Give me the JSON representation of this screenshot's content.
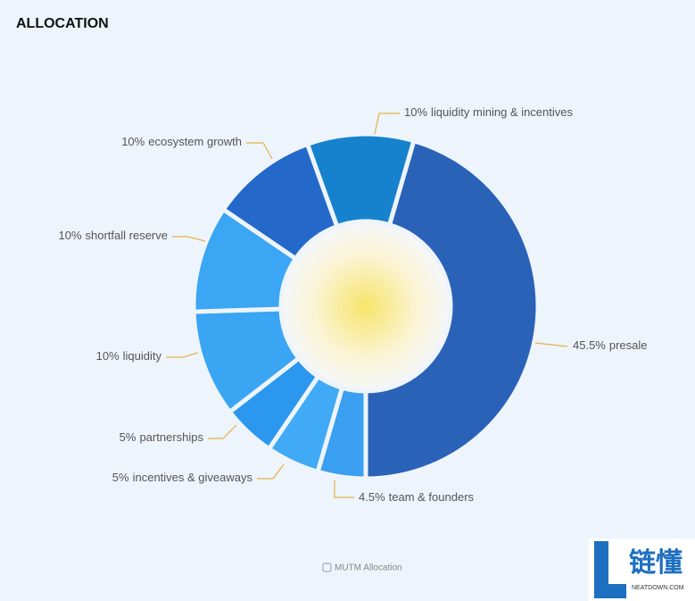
{
  "chart_data": {
    "type": "donut",
    "title": "ALLOCATION",
    "caption": "MUTM Allocation",
    "categories": [
      "presale",
      "team & founders",
      "incentives & giveaways",
      "partnerships",
      "liquidity",
      "shortfall reserve",
      "ecosystem growth",
      "liquidity mining & incentives"
    ],
    "values": [
      45.5,
      4.5,
      5,
      5,
      10,
      10,
      10,
      10
    ],
    "value_labels": [
      "45.5%",
      "4.5%",
      "5%",
      "5%",
      "10%",
      "10%",
      "10%",
      "10%"
    ],
    "colors": [
      "#2a62b8",
      "#3a9ff0",
      "#40aaf6",
      "#2b97ee",
      "#3aa5f3",
      "#3ba6f3",
      "#2468c9",
      "#1682cd"
    ]
  },
  "watermark": {
    "mark": "链懂",
    "site": "NEATDOWN.COM"
  }
}
